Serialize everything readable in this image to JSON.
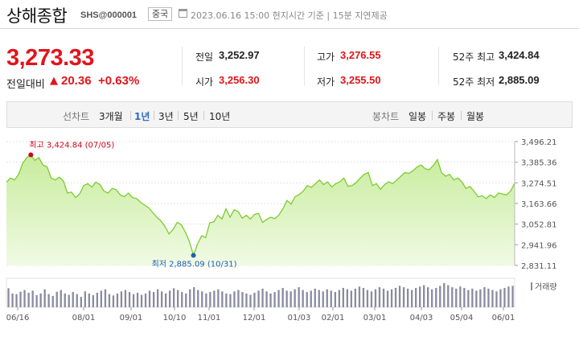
{
  "header": {
    "title": "상해종합",
    "code": "SHS@000001",
    "country": "중국",
    "timestamp": "2023.06.16 15:00 현지시간 기준",
    "delay": "15분 지연제공"
  },
  "quote": {
    "price": "3,273.33",
    "change_label": "전일대비",
    "change_arrow": "▲",
    "change_value": "20.36",
    "change_percent": "+0.63%"
  },
  "stats": {
    "prev_label": "전일",
    "prev_value": "3,252.97",
    "open_label": "시가",
    "open_value": "3,256.30",
    "high_label": "고가",
    "high_value": "3,276.55",
    "low_label": "저가",
    "low_value": "3,255.50",
    "w52_high_label": "52주 최고",
    "w52_high_value": "3,424.84",
    "w52_low_label": "52주 최저",
    "w52_low_value": "2,885.09"
  },
  "toolbar": {
    "line_label": "선차트",
    "ranges": [
      "3개월",
      "1년",
      "3년",
      "5년",
      "10년"
    ],
    "active_range": "1년",
    "candle_label": "봉차트",
    "periods": [
      "일봉",
      "주봉",
      "월봉"
    ]
  },
  "chart_data": {
    "type": "area",
    "title": "",
    "ylim": [
      2831.11,
      3496.21
    ],
    "yticks": [
      "3,496.21",
      "3,385.36",
      "3,274.51",
      "3,163.66",
      "3,052.81",
      "2,941.96",
      "2,831.11"
    ],
    "xticks": [
      "06/16",
      "08/01",
      "09/01",
      "10/10",
      "11/01",
      "12/01",
      "01/03",
      "02/01",
      "03/01",
      "04/03",
      "05/04",
      "06/01"
    ],
    "annotations": {
      "high": {
        "label": "최고",
        "value": "3,424.84",
        "date": "(07/05)"
      },
      "low": {
        "label": "최저",
        "value": "2,885.09",
        "date": "(10/31)"
      }
    },
    "volume_label": "거래량",
    "colors": {
      "line": "#7ccc2e",
      "fill_top": "#c8ec9c",
      "fill_bottom": "#f0fae4",
      "volume": "#8a8aa0",
      "high": "#d0021b",
      "low": "#1f5fb8"
    },
    "series": [
      {
        "values": [
          3278,
          3300,
          3290,
          3320,
          3380,
          3410,
          3424.84,
          3395,
          3410,
          3370,
          3360,
          3300,
          3290,
          3305,
          3285,
          3220,
          3225,
          3195,
          3215,
          3260,
          3270,
          3252,
          3278,
          3265,
          3230,
          3220,
          3245,
          3238,
          3210,
          3200,
          3220,
          3195,
          3190,
          3170,
          3155,
          3140,
          3115,
          3090,
          3070,
          3040,
          3000,
          3025,
          3062,
          3050,
          3010,
          2960,
          2885.09,
          2945,
          2990,
          2980,
          3060,
          3065,
          3100,
          3080,
          3135,
          3090,
          3130,
          3120,
          3085,
          3100,
          3080,
          3105,
          3110,
          3062,
          3078,
          3090,
          3082,
          3102,
          3135,
          3180,
          3160,
          3200,
          3212,
          3230,
          3260,
          3250,
          3270,
          3290,
          3265,
          3280,
          3252,
          3270,
          3280,
          3300,
          3256,
          3260,
          3275,
          3300,
          3320,
          3330,
          3260,
          3270,
          3240,
          3265,
          3280,
          3270,
          3290,
          3310,
          3330,
          3325,
          3340,
          3360,
          3370,
          3350,
          3345,
          3368,
          3400,
          3330,
          3310,
          3320,
          3290,
          3300,
          3280,
          3245,
          3255,
          3230,
          3200,
          3205,
          3190,
          3210,
          3195,
          3220,
          3215,
          3210,
          3230,
          3273.33
        ]
      }
    ],
    "volume": [
      55,
      40,
      38,
      45,
      50,
      42,
      48,
      35,
      40,
      52,
      38,
      33,
      45,
      50,
      40,
      36,
      44,
      38,
      30,
      46,
      40,
      35,
      42,
      48,
      52,
      38,
      34,
      40,
      46,
      50,
      44,
      38,
      42,
      36,
      40,
      48,
      44,
      52,
      46,
      40,
      48,
      55,
      50,
      44,
      40,
      52,
      58,
      50,
      46,
      40,
      44,
      48,
      52,
      46,
      40,
      38,
      46,
      50,
      44,
      40,
      36,
      42,
      48,
      54,
      46,
      40,
      44,
      50,
      56,
      48,
      46,
      52,
      58,
      50,
      44,
      48,
      54,
      50,
      46,
      52,
      48,
      44,
      50,
      56,
      52,
      48,
      54,
      60,
      56,
      50,
      46,
      52,
      58,
      54,
      48,
      52,
      56,
      62,
      58,
      54,
      50,
      56,
      60,
      64,
      58,
      52,
      56,
      62,
      70,
      64,
      58,
      54,
      60,
      56,
      50,
      54,
      48,
      52,
      58,
      54,
      50,
      46,
      52,
      56,
      60,
      62
    ]
  }
}
